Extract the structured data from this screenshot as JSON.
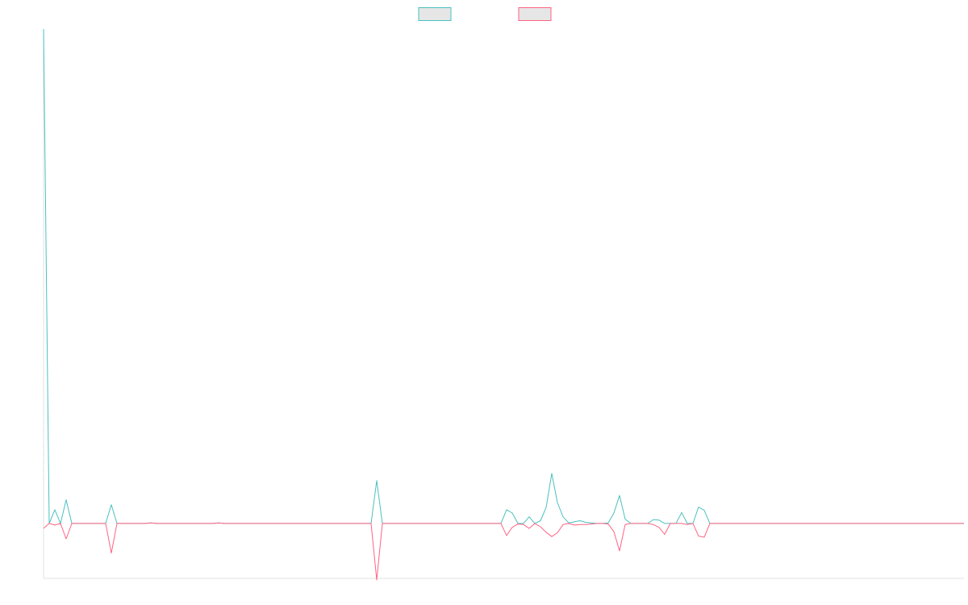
{
  "chart_data": {
    "type": "line",
    "title": "",
    "xlabel": "",
    "ylabel": "",
    "grid": false,
    "legend": "top-center",
    "ylim": [
      -10,
      90
    ],
    "series": [
      {
        "color": "#4bc0c0",
        "fill": "#e6e6e6",
        "values": [
          90,
          0,
          2.5,
          0,
          4.3,
          0,
          0,
          0,
          0,
          0,
          0,
          0,
          3.4,
          0,
          0,
          0,
          0,
          0,
          0,
          0.1,
          0,
          0,
          0,
          0,
          0,
          0,
          0,
          0,
          0,
          0,
          0,
          0.1,
          0,
          0,
          0,
          0,
          0,
          0,
          0,
          0,
          0,
          0,
          0,
          0,
          0,
          0,
          0,
          0,
          0,
          0,
          0,
          0,
          0,
          0,
          0,
          0,
          0,
          0,
          0,
          7.8,
          0,
          0,
          0,
          0,
          0,
          0,
          0,
          0,
          0,
          0,
          0,
          0,
          0,
          0,
          0,
          0,
          0,
          0,
          0,
          0,
          0,
          0,
          2.5,
          1.9,
          0,
          0,
          1.2,
          0,
          0.5,
          2.9,
          9.1,
          3.8,
          1.2,
          0.1,
          0.3,
          0.5,
          0.2,
          0.1,
          0,
          0,
          0.1,
          1.9,
          5.1,
          0.8,
          0,
          0,
          0,
          0,
          0.7,
          0.6,
          0,
          0,
          0,
          2.0,
          0,
          0,
          3.0,
          2.4,
          0,
          0,
          0,
          0,
          0,
          0,
          0,
          0,
          0,
          0,
          0,
          0,
          0,
          0,
          0,
          0,
          0,
          0,
          0,
          0,
          0,
          0,
          0,
          0,
          0,
          0,
          0,
          0,
          0,
          0,
          0,
          0,
          0,
          0,
          0,
          0,
          0,
          0,
          0,
          0,
          0,
          0,
          0,
          0,
          0,
          0
        ]
      },
      {
        "color": "#ff6384",
        "fill": "#e6e6e6",
        "values": [
          -0.9,
          0,
          -0.3,
          0,
          -2.8,
          0,
          0,
          0,
          0,
          0,
          0,
          0,
          -5.4,
          0,
          0,
          0,
          0,
          0,
          0,
          0.1,
          0,
          0,
          0,
          0,
          0,
          0,
          0,
          0,
          0,
          0,
          0,
          0.1,
          0,
          0,
          0,
          0,
          0,
          0,
          0,
          0,
          0,
          0,
          0,
          0,
          0,
          0,
          0,
          0,
          0,
          0,
          0,
          0,
          0,
          0,
          0,
          0,
          0,
          0,
          0,
          -10.3,
          0,
          0,
          0,
          0,
          0,
          0,
          0,
          0,
          0,
          0,
          0,
          0,
          0,
          0,
          0,
          0,
          0,
          0,
          0,
          0,
          0,
          0,
          -2.2,
          -0.7,
          -0.1,
          -0.2,
          -0.9,
          0,
          -0.6,
          -1.6,
          -2.4,
          -1.7,
          -0.2,
          0,
          -0.3,
          -0.2,
          -0.2,
          -0.1,
          0,
          0,
          -0.1,
          -1.5,
          -5.0,
          -0.2,
          0,
          0,
          0,
          0,
          -0.2,
          -0.7,
          -2.0,
          0,
          0,
          0,
          -0.2,
          0,
          -2.3,
          -2.5,
          0,
          0,
          0,
          0,
          0,
          0,
          0,
          0,
          0,
          0,
          0,
          0,
          0,
          0,
          0,
          0,
          0,
          0,
          0,
          0,
          0,
          0,
          0,
          0,
          0,
          0,
          0,
          0,
          0,
          0,
          0,
          0,
          0,
          0,
          0,
          0,
          0,
          0,
          0,
          0,
          0,
          0,
          0,
          0,
          0,
          0
        ]
      }
    ]
  }
}
